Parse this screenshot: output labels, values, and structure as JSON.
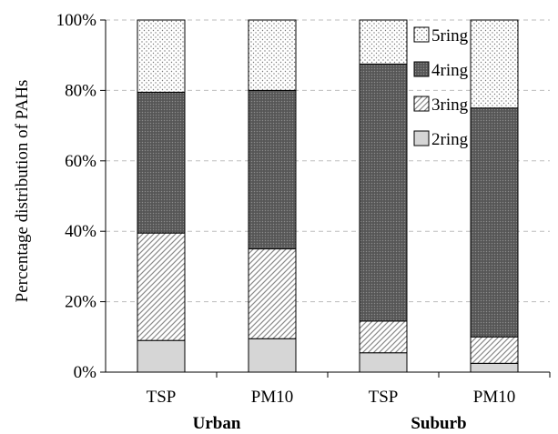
{
  "chart_data": {
    "type": "bar",
    "stacked": true,
    "title": "",
    "xlabel": "",
    "ylabel": "Percentage distribution of PAHs",
    "ylim": [
      0,
      100
    ],
    "y_ticks": [
      "0%",
      "20%",
      "40%",
      "60%",
      "80%",
      "100%"
    ],
    "grid": "horizontal dashed",
    "legend_position": "top-right",
    "categories": [
      "TSP",
      "PM10",
      "TSP",
      "PM10"
    ],
    "groups": [
      {
        "label": "Urban",
        "categories": [
          "TSP",
          "PM10"
        ]
      },
      {
        "label": "Suburb",
        "categories": [
          "TSP",
          "PM10"
        ]
      }
    ],
    "series": [
      {
        "name": "2ring",
        "values": [
          9.0,
          9.5,
          5.5,
          2.5
        ],
        "pattern": "light-gray"
      },
      {
        "name": "3ring",
        "values": [
          30.5,
          25.5,
          9.0,
          7.5
        ],
        "pattern": "diagonal-hatch"
      },
      {
        "name": "4ring",
        "values": [
          40.0,
          45.0,
          73.0,
          65.0
        ],
        "pattern": "dark-gray-dots"
      },
      {
        "name": "5ring",
        "values": [
          20.5,
          20.0,
          12.5,
          25.0
        ],
        "pattern": "white-dots"
      }
    ],
    "legend_order": [
      "5ring",
      "4ring",
      "3ring",
      "2ring"
    ]
  }
}
